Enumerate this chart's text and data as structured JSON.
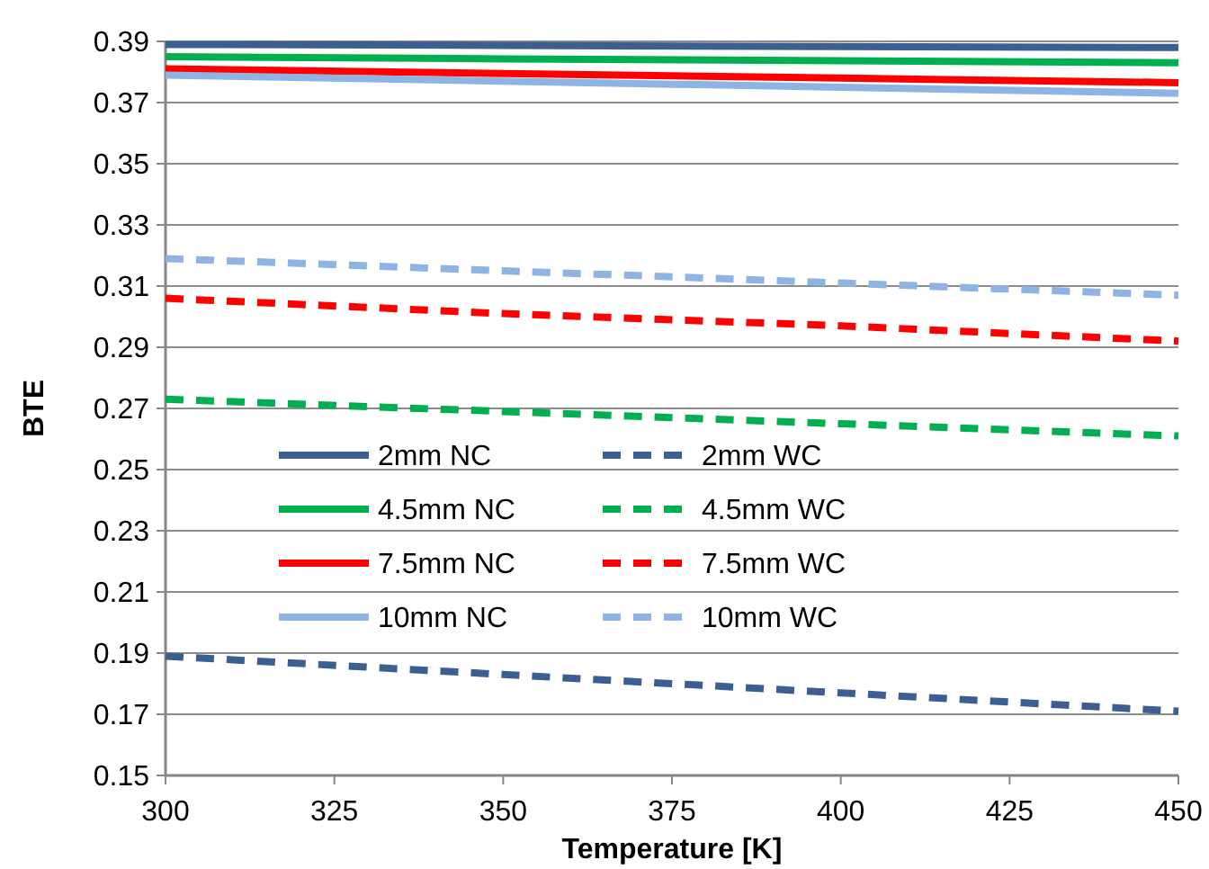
{
  "chart_data": {
    "type": "line",
    "xlabel": "Temperature [K]",
    "ylabel": "BTE",
    "x": [
      300,
      350,
      400,
      450
    ],
    "xlim": [
      300,
      450
    ],
    "xticks": [
      300,
      325,
      350,
      375,
      400,
      425,
      450
    ],
    "ylim": [
      0.15,
      0.39
    ],
    "yticks": [
      0.15,
      0.17,
      0.19,
      0.21,
      0.23,
      0.25,
      0.27,
      0.29,
      0.31,
      0.33,
      0.35,
      0.37,
      0.39
    ],
    "grid": "y",
    "legend": "left",
    "marker": "none",
    "series": [
      {
        "name": "2mm NC",
        "color": "#3b5f91",
        "line_style": "solid",
        "values": [
          0.389,
          0.3887,
          0.3883,
          0.388
        ]
      },
      {
        "name": "2mm WC",
        "color": "#3b5f91",
        "line_style": "dashed",
        "values": [
          0.189,
          0.183,
          0.177,
          0.171
        ]
      },
      {
        "name": "4.5mm NC",
        "color": "#00b050",
        "line_style": "solid",
        "values": [
          0.385,
          0.3843,
          0.3837,
          0.383
        ]
      },
      {
        "name": "4.5mm WC",
        "color": "#00b050",
        "line_style": "dashed",
        "values": [
          0.273,
          0.269,
          0.265,
          0.261
        ]
      },
      {
        "name": "7.5mm NC",
        "color": "#ff0000",
        "line_style": "solid",
        "values": [
          0.381,
          0.3795,
          0.378,
          0.3765
        ]
      },
      {
        "name": "7.5mm WC",
        "color": "#ff0000",
        "line_style": "dashed",
        "values": [
          0.306,
          0.301,
          0.297,
          0.292
        ]
      },
      {
        "name": "10mm NC",
        "color": "#8eb4e3",
        "line_style": "solid",
        "values": [
          0.379,
          0.377,
          0.375,
          0.373
        ]
      },
      {
        "name": "10mm WC",
        "color": "#8eb4e3",
        "line_style": "dashed",
        "values": [
          0.319,
          0.315,
          0.311,
          0.307
        ]
      }
    ]
  }
}
